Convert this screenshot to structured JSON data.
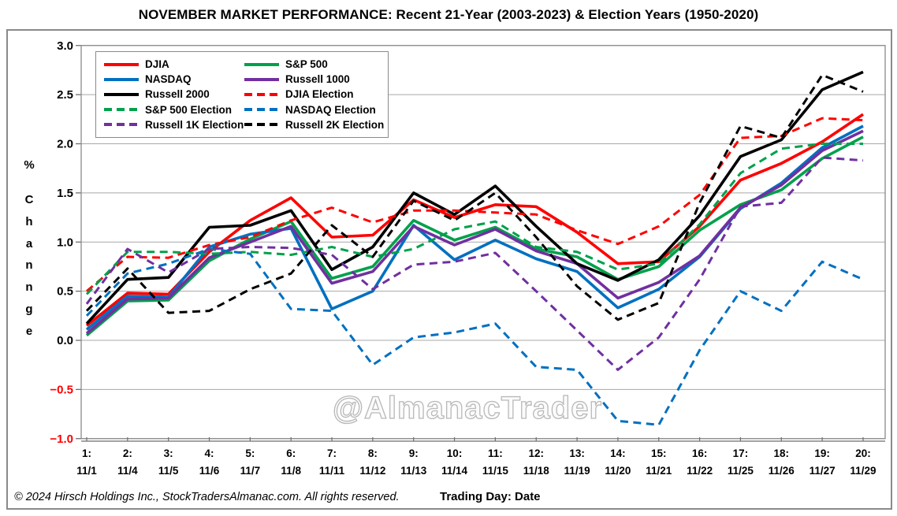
{
  "title": "NOVEMBER MARKET PERFORMANCE: Recent 21-Year (2003-2023) & Election Years (1950-2020)",
  "watermark": "@AlmanacTrader",
  "footer": {
    "copyright": "© 2024 Hirsch Holdings Inc., StockTradersAlmanac.com. All rights reserved.",
    "xlabel": "Trading Day: Date"
  },
  "colors": {
    "grid": "#a8a8a8",
    "border": "#8a8a8a",
    "axis_text": "#000000",
    "negative_tick": "#FF0000",
    "red": "#FF0000",
    "green": "#00A14B",
    "blue": "#0070C0",
    "purple": "#7030A0",
    "black": "#000000"
  },
  "y_axis": {
    "unit": "%",
    "label_letters": [
      "C",
      "h",
      "a",
      "n",
      "n",
      "g",
      "e"
    ],
    "ticks": [
      {
        "label": "3.0",
        "value": 3.0
      },
      {
        "label": "2.5",
        "value": 2.5
      },
      {
        "label": "2.0",
        "value": 2.0
      },
      {
        "label": "1.5",
        "value": 1.5
      },
      {
        "label": "1.0",
        "value": 1.0
      },
      {
        "label": "0.5",
        "value": 0.5
      },
      {
        "label": "0.0",
        "value": 0.0
      },
      {
        "label": "−0.5",
        "value": -0.5
      },
      {
        "label": "−1.0",
        "value": -1.0
      }
    ]
  },
  "legend": {
    "column_major_order": [
      0,
      2,
      4,
      6,
      8,
      1,
      3,
      5,
      7,
      9
    ]
  },
  "chart_data": {
    "type": "line",
    "title": "NOVEMBER MARKET PERFORMANCE: Recent 21-Year (2003-2023) & Election Years (1950-2020)",
    "xlabel": "Trading Day: Date",
    "ylabel": "% Change",
    "ylim": [
      -1.0,
      3.0
    ],
    "grid": true,
    "legend_position": "top-left",
    "day_labels": [
      "1:",
      "2:",
      "3:",
      "4:",
      "5:",
      "6:",
      "7:",
      "8:",
      "9:",
      "10:",
      "11:",
      "12:",
      "13:",
      "14:",
      "15:",
      "16:",
      "17:",
      "18:",
      "19:",
      "20:"
    ],
    "date_labels": [
      "11/1",
      "11/4",
      "11/5",
      "11/6",
      "11/7",
      "11/8",
      "11/11",
      "11/12",
      "11/13",
      "11/14",
      "11/15",
      "11/18",
      "11/19",
      "11/20",
      "11/21",
      "11/22",
      "11/25",
      "11/26",
      "11/27",
      "11/29"
    ],
    "series": [
      {
        "name": "DJIA",
        "color": "red",
        "dashed": false,
        "values": [
          0.15,
          0.48,
          0.47,
          0.9,
          1.22,
          1.45,
          1.05,
          1.07,
          1.43,
          1.25,
          1.38,
          1.36,
          1.1,
          0.78,
          0.8,
          1.16,
          1.63,
          1.8,
          2.02,
          2.3
        ]
      },
      {
        "name": "S&P 500",
        "color": "green",
        "dashed": false,
        "values": [
          0.05,
          0.4,
          0.41,
          0.81,
          1.03,
          1.21,
          0.63,
          0.75,
          1.22,
          1.02,
          1.15,
          0.93,
          0.85,
          0.62,
          0.75,
          1.12,
          1.38,
          1.53,
          1.85,
          2.07
        ]
      },
      {
        "name": "NASDAQ",
        "color": "blue",
        "dashed": false,
        "values": [
          0.11,
          0.45,
          0.44,
          0.95,
          1.08,
          1.14,
          0.32,
          0.5,
          1.17,
          0.82,
          1.02,
          0.83,
          0.7,
          0.33,
          0.52,
          0.85,
          1.34,
          1.6,
          1.96,
          2.18
        ]
      },
      {
        "name": "Russell 1000",
        "color": "purple",
        "dashed": false,
        "values": [
          0.07,
          0.42,
          0.43,
          0.84,
          1.0,
          1.16,
          0.58,
          0.7,
          1.16,
          0.97,
          1.13,
          0.91,
          0.78,
          0.43,
          0.59,
          0.86,
          1.35,
          1.58,
          1.93,
          2.13
        ]
      },
      {
        "name": "Russell 2000",
        "color": "black",
        "dashed": false,
        "values": [
          0.17,
          0.62,
          0.64,
          1.15,
          1.17,
          1.32,
          0.72,
          0.95,
          1.5,
          1.28,
          1.57,
          1.16,
          0.78,
          0.61,
          0.82,
          1.27,
          1.87,
          2.04,
          2.55,
          2.73
        ]
      },
      {
        "name": "DJIA Election",
        "color": "red",
        "dashed": true,
        "values": [
          0.5,
          0.85,
          0.84,
          0.97,
          1.05,
          1.22,
          1.35,
          1.2,
          1.32,
          1.32,
          1.3,
          1.28,
          1.12,
          0.98,
          1.16,
          1.48,
          2.06,
          2.08,
          2.26,
          2.24
        ]
      },
      {
        "name": "S&P 500 Election",
        "color": "green",
        "dashed": true,
        "values": [
          0.47,
          0.9,
          0.9,
          0.88,
          0.9,
          0.87,
          0.95,
          0.85,
          0.93,
          1.13,
          1.21,
          0.95,
          0.9,
          0.72,
          0.78,
          1.18,
          1.7,
          1.95,
          2.0,
          2.0
        ]
      },
      {
        "name": "NASDAQ Election",
        "color": "blue",
        "dashed": true,
        "values": [
          0.25,
          0.68,
          0.78,
          0.93,
          0.88,
          0.32,
          0.3,
          -0.25,
          0.03,
          0.08,
          0.17,
          -0.27,
          -0.3,
          -0.82,
          -0.86,
          -0.1,
          0.5,
          0.3,
          0.8,
          0.62
        ]
      },
      {
        "name": "Russell 1K Election",
        "color": "purple",
        "dashed": true,
        "values": [
          0.37,
          0.93,
          0.69,
          0.93,
          0.95,
          0.94,
          0.87,
          0.52,
          0.77,
          0.8,
          0.89,
          0.5,
          0.1,
          -0.3,
          0.03,
          0.62,
          1.36,
          1.4,
          1.86,
          1.83
        ]
      },
      {
        "name": "Russell 2K Election",
        "color": "black",
        "dashed": true,
        "values": [
          0.3,
          0.73,
          0.28,
          0.3,
          0.52,
          0.68,
          1.17,
          0.85,
          1.42,
          1.22,
          1.5,
          1.05,
          0.55,
          0.21,
          0.38,
          1.4,
          2.18,
          2.06,
          2.7,
          2.53
        ]
      }
    ]
  }
}
